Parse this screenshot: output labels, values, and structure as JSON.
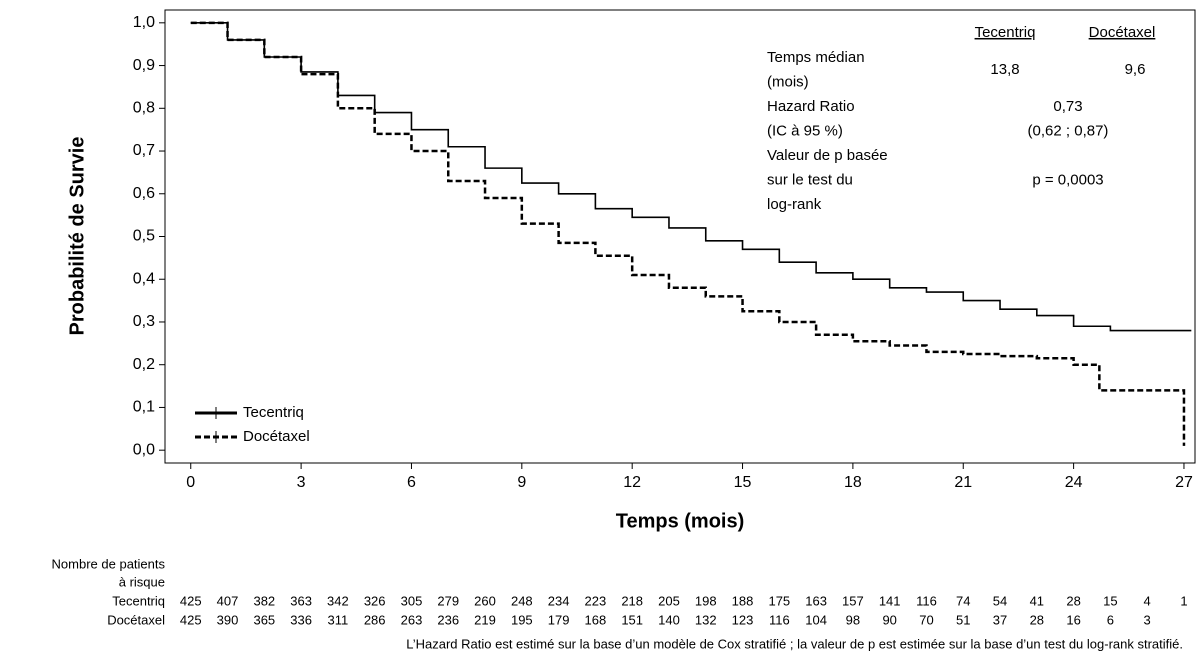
{
  "chart_data": {
    "type": "step",
    "y_label": "Probabilité de Survie",
    "x_label": "Temps (mois)",
    "xlim": [
      -0.7,
      27.3
    ],
    "ylim": [
      -0.03,
      1.03
    ],
    "xticks": [
      0,
      3,
      6,
      9,
      12,
      15,
      18,
      21,
      24,
      27
    ],
    "yticks": [
      {
        "value": 0,
        "label": "0,0"
      },
      {
        "value": 0.1,
        "label": "0,1"
      },
      {
        "value": 0.2,
        "label": "0,2"
      },
      {
        "value": 0.3,
        "label": "0,3"
      },
      {
        "value": 0.4,
        "label": "0,4"
      },
      {
        "value": 0.5,
        "label": "0,5"
      },
      {
        "value": 0.6,
        "label": "0,6"
      },
      {
        "value": 0.7,
        "label": "0,7"
      },
      {
        "value": 0.8,
        "label": "0,8"
      },
      {
        "value": 0.9,
        "label": "0,9"
      },
      {
        "value": 1,
        "label": "1,0"
      }
    ],
    "series": [
      {
        "name": "Tecentriq",
        "color": "#000000",
        "line_style": "solid",
        "x": [
          0,
          1,
          2,
          3,
          4,
          5,
          6,
          7,
          8,
          9,
          10,
          11,
          12,
          13,
          14,
          15,
          16,
          17,
          18,
          19,
          20,
          21,
          22,
          23,
          24,
          25,
          26,
          27.2
        ],
        "values": [
          1.0,
          0.96,
          0.92,
          0.885,
          0.83,
          0.79,
          0.75,
          0.71,
          0.66,
          0.625,
          0.6,
          0.565,
          0.545,
          0.52,
          0.49,
          0.47,
          0.44,
          0.415,
          0.4,
          0.38,
          0.37,
          0.35,
          0.33,
          0.315,
          0.29,
          0.28,
          0.28,
          0.28
        ]
      },
      {
        "name": "Docétaxel",
        "color": "#000000",
        "line_style": "dashed",
        "x": [
          0,
          1,
          2,
          3,
          4,
          5,
          6,
          7,
          8,
          9,
          10,
          11,
          12,
          13,
          14,
          15,
          16,
          17,
          18,
          19,
          20,
          21,
          22,
          23,
          24,
          24.7,
          27,
          27
        ],
        "values": [
          1.0,
          0.96,
          0.92,
          0.88,
          0.8,
          0.74,
          0.7,
          0.63,
          0.59,
          0.53,
          0.485,
          0.455,
          0.41,
          0.38,
          0.36,
          0.325,
          0.3,
          0.27,
          0.255,
          0.245,
          0.23,
          0.225,
          0.22,
          0.215,
          0.2,
          0.14,
          0.14,
          0.01
        ]
      }
    ],
    "stats_table": {
      "headers": [
        "Tecentriq",
        "Docétaxel"
      ],
      "rows": [
        {
          "label": [
            "Temps médian",
            "(mois)"
          ],
          "values": [
            "13,8",
            "9,6"
          ]
        },
        {
          "label": [
            "Hazard Ratio"
          ],
          "values": [
            "0,73"
          ]
        },
        {
          "label": [
            "(IC à 95 %)"
          ],
          "values": [
            "(0,62 ; 0,87)"
          ]
        },
        {
          "label": [
            "Valeur de p basée",
            "sur le test du",
            "log-rank"
          ],
          "values": [
            "p = 0,0003"
          ]
        }
      ]
    },
    "risk_table": {
      "title": [
        "Nombre de patients",
        "à risque"
      ],
      "rows": [
        {
          "name": "Tecentriq",
          "values": [
            425,
            407,
            382,
            363,
            342,
            326,
            305,
            279,
            260,
            248,
            234,
            223,
            218,
            205,
            198,
            188,
            175,
            163,
            157,
            141,
            116,
            74,
            54,
            41,
            28,
            15,
            4,
            1
          ]
        },
        {
          "name": "Docétaxel",
          "values": [
            425,
            390,
            365,
            336,
            311,
            286,
            263,
            236,
            219,
            195,
            179,
            168,
            151,
            140,
            132,
            123,
            116,
            104,
            98,
            90,
            70,
            51,
            37,
            28,
            16,
            6,
            3,
            null
          ]
        }
      ]
    },
    "footnote": "L’Hazard Ratio est estimé sur la base d’un modèle de Cox stratifié ; la valeur de p est estimée sur la base d’un test du log-rank stratifié."
  }
}
